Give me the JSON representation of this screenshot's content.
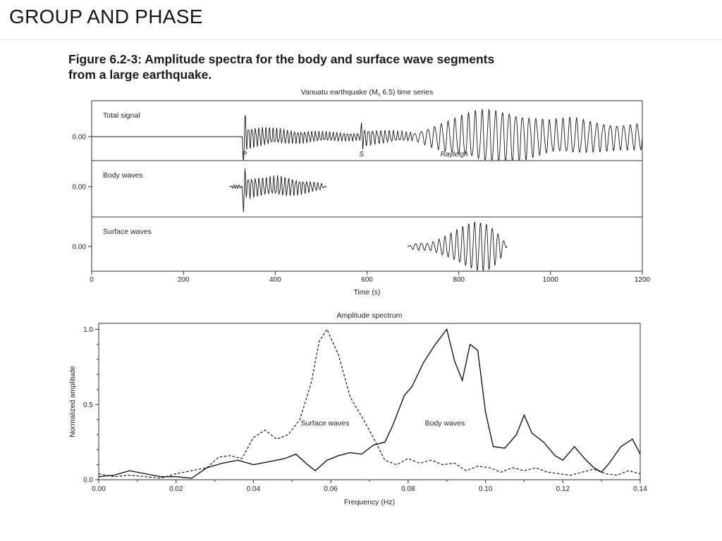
{
  "slide": {
    "title": "GROUP AND PHASE",
    "caption": {
      "line1": "Figure 6.2-3: Amplitude spectra for the body and surface wave segments",
      "line2": "from a large earthquake."
    }
  },
  "chart_data": [
    {
      "type": "line",
      "id": "time-series",
      "title": {
        "pre": "Vanuatu earthquake (M",
        "sub": "s",
        "post": " 6.5) time series"
      },
      "xlabel": "Time (s)",
      "xlim": [
        0,
        1200
      ],
      "xticks": [
        0,
        200,
        400,
        600,
        800,
        1000,
        1200
      ],
      "ytick_label": "0.00",
      "grid": false,
      "panels": [
        {
          "label": "Total signal",
          "t_range": [
            0,
            1200
          ],
          "annotations": [
            {
              "text": "P",
              "t": 333
            },
            {
              "text": "S",
              "t": 588
            },
            {
              "text": "Rayleigh",
              "t": 790
            }
          ],
          "packets": [
            {
              "tri": [
                331,
                3,
                -1.2
              ]
            },
            {
              "tri": [
                334.5,
                3,
                0.55
              ]
            },
            {
              "freq": 0.13,
              "rough": 0.35,
              "envelope": [
                [
                  332,
                  0.38
                ],
                [
                  360,
                  0.3
                ],
                [
                  420,
                  0.22
                ],
                [
                  500,
                  0.15
                ],
                [
                  585,
                  0.11
                ]
              ]
            },
            {
              "tri": [
                588,
                3,
                0.5
              ]
            },
            {
              "tri": [
                591,
                3,
                -0.45
              ]
            },
            {
              "freq": 0.11,
              "rough": 0.3,
              "envelope": [
                [
                  592,
                  0.28
                ],
                [
                  620,
                  0.22
                ],
                [
                  660,
                  0.17
                ],
                [
                  700,
                  0.13
                ]
              ]
            },
            {
              "freq": 0.068,
              "rough": 0.15,
              "envelope": [
                [
                  700,
                  0.1
                ],
                [
                  730,
                  0.28
                ],
                [
                  760,
                  0.45
                ],
                [
                  800,
                  0.65
                ],
                [
                  840,
                  0.85
                ],
                [
                  870,
                  0.92
                ],
                [
                  910,
                  0.9
                ],
                [
                  950,
                  0.72
                ],
                [
                  1000,
                  0.55
                ],
                [
                  1050,
                  0.62
                ],
                [
                  1100,
                  0.5
                ],
                [
                  1150,
                  0.42
                ],
                [
                  1200,
                  0.46
                ]
              ]
            }
          ]
        },
        {
          "label": "Body waves",
          "t_range": [
            300,
            512
          ],
          "annotations": [],
          "packets": [
            {
              "freq": 0.18,
              "envelope": [
                [
                  303,
                  0
                ],
                [
                  308,
                  0.1
                ],
                [
                  320,
                  0.1
                ],
                [
                  326,
                  0.05
                ]
              ]
            },
            {
              "tri": [
                331,
                3,
                -1.55
              ]
            },
            {
              "tri": [
                334.5,
                3,
                0.65
              ]
            },
            {
              "freq": 0.125,
              "rough": 0.35,
              "envelope": [
                [
                  331,
                  0.55
                ],
                [
                  350,
                  0.48
                ],
                [
                  380,
                  0.42
                ],
                [
                  410,
                  0.48
                ],
                [
                  440,
                  0.4
                ],
                [
                  470,
                  0.28
                ],
                [
                  500,
                  0.16
                ],
                [
                  510,
                  0
                ]
              ]
            }
          ]
        },
        {
          "label": "Surface waves",
          "t_range": [
            688,
            906
          ],
          "annotations": [],
          "packets": [
            {
              "freq": 0.078,
              "rough": 0.1,
              "envelope": [
                [
                  690,
                  0
                ],
                [
                  698,
                  0.1
                ],
                [
                  715,
                  0.16
                ],
                [
                  735,
                  0.14
                ],
                [
                  755,
                  0.28
                ],
                [
                  775,
                  0.45
                ],
                [
                  795,
                  0.65
                ],
                [
                  815,
                  0.85
                ],
                [
                  835,
                  1.0
                ],
                [
                  858,
                  1.0
                ],
                [
                  875,
                  0.8
                ],
                [
                  890,
                  0.5
                ],
                [
                  900,
                  0.2
                ],
                [
                  905,
                  0
                ]
              ]
            }
          ]
        }
      ]
    },
    {
      "type": "line",
      "id": "spectrum",
      "title": "Amplitude spectrum",
      "xlabel": "Frequency (Hz)",
      "ylabel": "Normalized amplitude",
      "xlim": [
        0,
        0.14
      ],
      "ylim": [
        0,
        1.04
      ],
      "grid": false,
      "legend_position": "inline-labels",
      "xticks": [
        "0.00",
        "0.02",
        "0.04",
        "0.06",
        "0.08",
        "0.10",
        "0.12",
        "0.14"
      ],
      "yticks": [
        {
          "v": 0,
          "label": "0.0"
        },
        {
          "v": 0.5,
          "label": "0.5"
        },
        {
          "v": 1.0,
          "label": "1.0"
        }
      ],
      "series": [
        {
          "name": "Surface waves",
          "style": "dashed",
          "label_at": {
            "x": 0.0585,
            "y": 0.36
          },
          "points": [
            [
              0.0,
              0.04
            ],
            [
              0.004,
              0.02
            ],
            [
              0.008,
              0.03
            ],
            [
              0.012,
              0.02
            ],
            [
              0.016,
              0.01
            ],
            [
              0.02,
              0.04
            ],
            [
              0.024,
              0.06
            ],
            [
              0.028,
              0.08
            ],
            [
              0.031,
              0.15
            ],
            [
              0.034,
              0.16
            ],
            [
              0.037,
              0.14
            ],
            [
              0.04,
              0.28
            ],
            [
              0.043,
              0.33
            ],
            [
              0.046,
              0.27
            ],
            [
              0.049,
              0.3
            ],
            [
              0.052,
              0.4
            ],
            [
              0.055,
              0.65
            ],
            [
              0.057,
              0.92
            ],
            [
              0.059,
              1.0
            ],
            [
              0.062,
              0.83
            ],
            [
              0.065,
              0.55
            ],
            [
              0.068,
              0.42
            ],
            [
              0.071,
              0.28
            ],
            [
              0.074,
              0.13
            ],
            [
              0.077,
              0.1
            ],
            [
              0.08,
              0.14
            ],
            [
              0.083,
              0.11
            ],
            [
              0.086,
              0.13
            ],
            [
              0.089,
              0.1
            ],
            [
              0.092,
              0.11
            ],
            [
              0.095,
              0.06
            ],
            [
              0.098,
              0.09
            ],
            [
              0.101,
              0.08
            ],
            [
              0.104,
              0.05
            ],
            [
              0.107,
              0.08
            ],
            [
              0.11,
              0.06
            ],
            [
              0.113,
              0.08
            ],
            [
              0.116,
              0.05
            ],
            [
              0.119,
              0.04
            ],
            [
              0.122,
              0.03
            ],
            [
              0.125,
              0.05
            ],
            [
              0.128,
              0.07
            ],
            [
              0.131,
              0.04
            ],
            [
              0.134,
              0.03
            ],
            [
              0.137,
              0.06
            ],
            [
              0.14,
              0.04
            ]
          ]
        },
        {
          "name": "Body waves",
          "style": "solid",
          "label_at": {
            "x": 0.0895,
            "y": 0.36
          },
          "points": [
            [
              0.0,
              0.02
            ],
            [
              0.004,
              0.03
            ],
            [
              0.008,
              0.06
            ],
            [
              0.012,
              0.04
            ],
            [
              0.016,
              0.02
            ],
            [
              0.02,
              0.02
            ],
            [
              0.024,
              0.01
            ],
            [
              0.028,
              0.08
            ],
            [
              0.032,
              0.11
            ],
            [
              0.036,
              0.13
            ],
            [
              0.04,
              0.1
            ],
            [
              0.044,
              0.12
            ],
            [
              0.048,
              0.14
            ],
            [
              0.051,
              0.17
            ],
            [
              0.054,
              0.1
            ],
            [
              0.056,
              0.06
            ],
            [
              0.059,
              0.13
            ],
            [
              0.062,
              0.16
            ],
            [
              0.065,
              0.18
            ],
            [
              0.068,
              0.17
            ],
            [
              0.071,
              0.23
            ],
            [
              0.074,
              0.25
            ],
            [
              0.076,
              0.36
            ],
            [
              0.079,
              0.56
            ],
            [
              0.081,
              0.62
            ],
            [
              0.084,
              0.78
            ],
            [
              0.087,
              0.9
            ],
            [
              0.09,
              1.0
            ],
            [
              0.092,
              0.79
            ],
            [
              0.094,
              0.66
            ],
            [
              0.096,
              0.9
            ],
            [
              0.098,
              0.86
            ],
            [
              0.1,
              0.45
            ],
            [
              0.102,
              0.22
            ],
            [
              0.105,
              0.21
            ],
            [
              0.108,
              0.3
            ],
            [
              0.11,
              0.43
            ],
            [
              0.112,
              0.31
            ],
            [
              0.115,
              0.25
            ],
            [
              0.118,
              0.16
            ],
            [
              0.12,
              0.13
            ],
            [
              0.123,
              0.22
            ],
            [
              0.126,
              0.13
            ],
            [
              0.128,
              0.08
            ],
            [
              0.13,
              0.05
            ],
            [
              0.132,
              0.11
            ],
            [
              0.135,
              0.22
            ],
            [
              0.138,
              0.27
            ],
            [
              0.14,
              0.17
            ]
          ]
        }
      ]
    }
  ]
}
